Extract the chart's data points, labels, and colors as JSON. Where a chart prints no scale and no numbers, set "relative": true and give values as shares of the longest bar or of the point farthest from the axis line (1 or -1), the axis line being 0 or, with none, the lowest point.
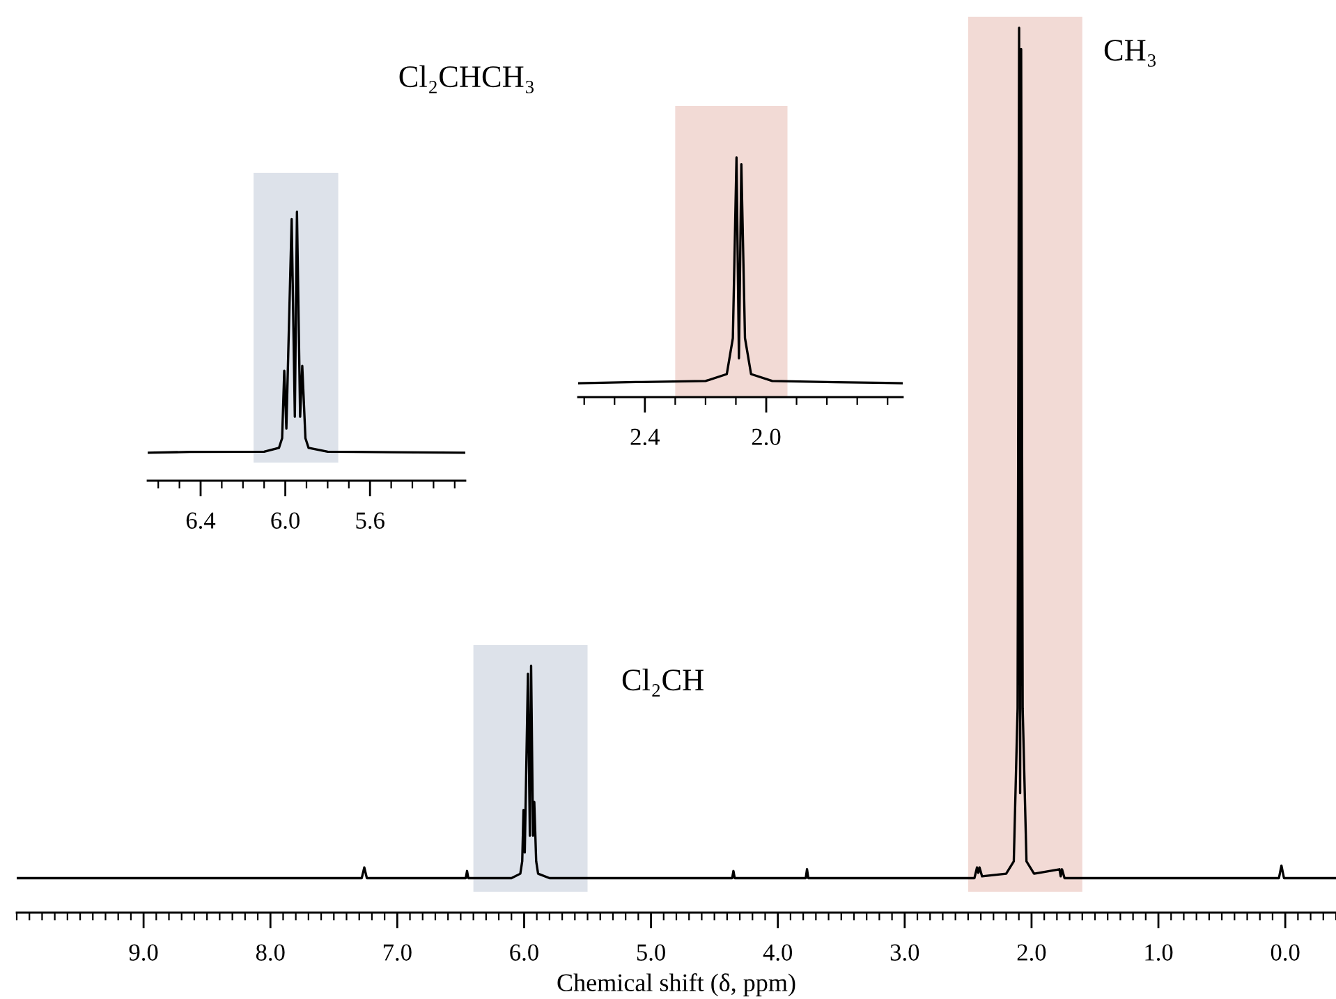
{
  "chart_data": [
    {
      "type": "line",
      "relative": true,
      "title": "Cl₂CHCH₃",
      "xlabel": "Chemical shift (δ, ppm)",
      "tick_labels": "x",
      "grid": false,
      "legend": false,
      "xlim": [
        10.0,
        -0.4
      ],
      "xticks": [
        {
          "value": 9,
          "label": "9.0"
        },
        {
          "value": 8,
          "label": "8.0"
        },
        {
          "value": 7,
          "label": "7.0"
        },
        {
          "value": 6,
          "label": "6.0"
        },
        {
          "value": 5,
          "label": "5.0"
        },
        {
          "value": 4,
          "label": "4.0"
        },
        {
          "value": 3,
          "label": "3.0"
        },
        {
          "value": 2,
          "label": "2.0"
        },
        {
          "value": 1,
          "label": "1.0"
        },
        {
          "value": 0,
          "label": "0.0"
        }
      ],
      "bands": [
        {
          "axis": "x",
          "from": 6.4,
          "to": 5.5,
          "color": "#dde2ea"
        },
        {
          "axis": "x",
          "from": 2.5,
          "to": 1.6,
          "color": "#f2dad5"
        }
      ],
      "annotations": [
        "Cl₂CH",
        "CH₃"
      ],
      "series": [
        {
          "color": "#000000",
          "x": [
            10.0,
            7.28,
            7.26,
            7.24,
            6.46,
            6.45,
            6.44,
            6.1,
            6.03,
            6.015,
            6.005,
            5.995,
            5.97,
            5.955,
            5.945,
            5.93,
            5.92,
            5.905,
            5.89,
            5.8,
            4.36,
            4.35,
            4.34,
            3.78,
            3.77,
            3.76,
            2.45,
            2.43,
            2.42,
            2.41,
            2.39,
            2.2,
            2.14,
            2.11,
            2.098,
            2.09,
            2.082,
            2.07,
            2.04,
            1.98,
            1.78,
            1.77,
            1.76,
            1.74,
            0.05,
            0.03,
            0.01,
            -0.4
          ],
          "values": [
            0.039,
            0.039,
            0.051,
            0.039,
            0.039,
            0.047,
            0.039,
            0.039,
            0.044,
            0.058,
            0.116,
            0.068,
            0.27,
            0.087,
            0.279,
            0.087,
            0.125,
            0.058,
            0.044,
            0.039,
            0.039,
            0.047,
            0.039,
            0.039,
            0.049,
            0.039,
            0.039,
            0.051,
            0.045,
            0.051,
            0.041,
            0.044,
            0.058,
            0.231,
            1.0,
            0.135,
            0.976,
            0.231,
            0.058,
            0.044,
            0.049,
            0.041,
            0.049,
            0.039,
            0.039,
            0.053,
            0.039,
            0.039
          ]
        }
      ]
    },
    {
      "type": "line",
      "relative": true,
      "tick_labels": "x",
      "grid": false,
      "legend": false,
      "xlim": [
        6.65,
        5.15
      ],
      "xticks": [
        {
          "value": 6.4,
          "label": "6.4"
        },
        {
          "value": 6.0,
          "label": "6.0"
        },
        {
          "value": 5.6,
          "label": "5.6"
        }
      ],
      "bands": [
        {
          "axis": "x",
          "from": 6.15,
          "to": 5.75,
          "color": "#dde2ea"
        }
      ],
      "series": [
        {
          "color": "#000000",
          "x": [
            6.65,
            6.45,
            6.1,
            6.03,
            6.015,
            6.005,
            5.995,
            5.97,
            5.955,
            5.945,
            5.93,
            5.92,
            5.905,
            5.89,
            5.8,
            5.5,
            5.15
          ],
          "values": [
            0.104,
            0.107,
            0.108,
            0.122,
            0.158,
            0.409,
            0.194,
            0.973,
            0.238,
            1.0,
            0.238,
            0.427,
            0.158,
            0.122,
            0.108,
            0.106,
            0.104
          ]
        }
      ]
    },
    {
      "type": "line",
      "relative": true,
      "tick_labels": "x",
      "grid": false,
      "legend": false,
      "xlim": [
        2.62,
        1.55
      ],
      "xticks": [
        {
          "value": 2.4,
          "label": "2.4"
        },
        {
          "value": 2.0,
          "label": "2.0"
        }
      ],
      "bands": [
        {
          "axis": "x",
          "from": 2.3,
          "to": 1.93,
          "color": "#f2dad5"
        }
      ],
      "series": [
        {
          "color": "#000000",
          "x": [
            2.62,
            2.43,
            2.41,
            2.2,
            2.13,
            2.11,
            2.098,
            2.09,
            2.082,
            2.07,
            2.05,
            1.98,
            1.77,
            1.55
          ],
          "values": [
            0.058,
            0.063,
            0.063,
            0.067,
            0.096,
            0.246,
            1.0,
            0.162,
            0.972,
            0.246,
            0.096,
            0.067,
            0.062,
            0.058
          ]
        }
      ]
    }
  ]
}
